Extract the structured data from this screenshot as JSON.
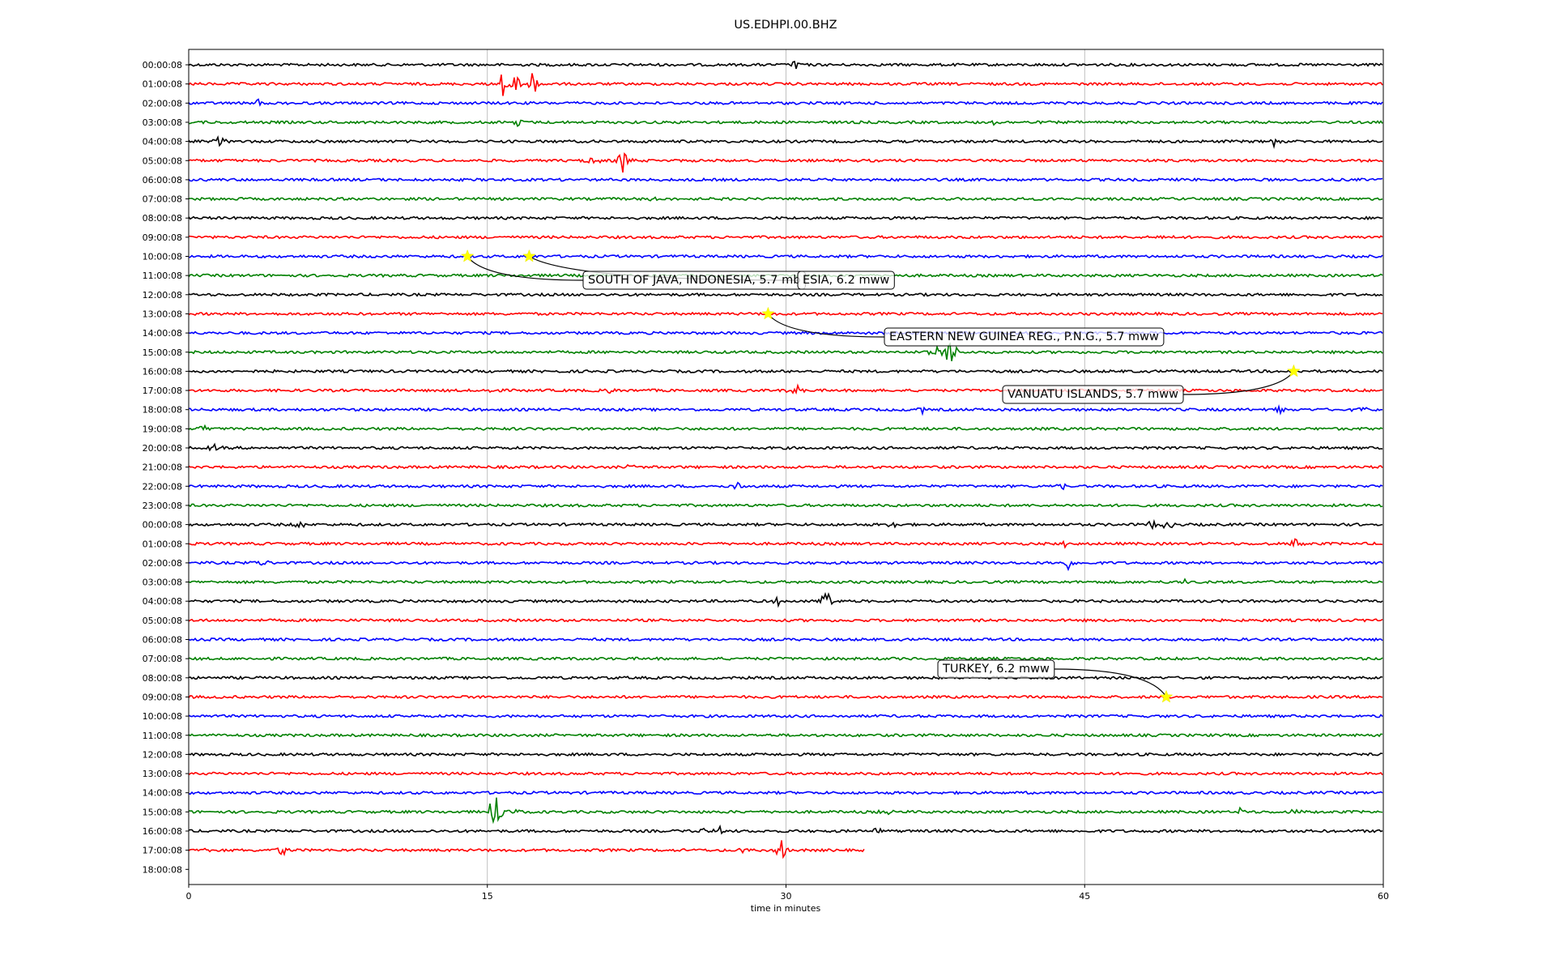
{
  "chart_data": {
    "type": "line",
    "title": "US.EDHPI.00.BHZ",
    "xlabel": "time in minutes",
    "xlim": [
      0,
      60
    ],
    "x_ticks": [
      0,
      15,
      30,
      45,
      60
    ],
    "grid": "vertical",
    "row_colors": [
      "#000000",
      "#ff0000",
      "#0000ff",
      "#008000"
    ],
    "rows": [
      "00:00:08",
      "01:00:08",
      "02:00:08",
      "03:00:08",
      "04:00:08",
      "05:00:08",
      "06:00:08",
      "07:00:08",
      "08:00:08",
      "09:00:08",
      "10:00:08",
      "11:00:08",
      "12:00:08",
      "13:00:08",
      "14:00:08",
      "15:00:08",
      "16:00:08",
      "17:00:08",
      "18:00:08",
      "19:00:08",
      "20:00:08",
      "21:00:08",
      "22:00:08",
      "23:00:08",
      "00:00:08",
      "01:00:08",
      "02:00:08",
      "03:00:08",
      "04:00:08",
      "05:00:08",
      "06:00:08",
      "07:00:08",
      "08:00:08",
      "09:00:08",
      "10:00:08",
      "11:00:08",
      "12:00:08",
      "13:00:08",
      "14:00:08",
      "15:00:08",
      "16:00:08",
      "17:00:08",
      "18:00:08"
    ],
    "last_trace_end_minute": 34,
    "events": [
      {
        "label": "SOUTH OF JAVA, INDONESIA, 5.7 mb",
        "row": 10,
        "minute": 14.0
      },
      {
        "label": "ESIA, 6.2 mww",
        "row": 10,
        "minute": 17.1
      },
      {
        "label": "EASTERN NEW GUINEA REG., P.N.G., 5.7 mww",
        "row": 13,
        "minute": 29.1
      },
      {
        "label": "VANUATU ISLANDS, 5.7 mww",
        "row": 16,
        "minute": 55.5
      },
      {
        "label": "TURKEY, 6.2 mww",
        "row": 33,
        "minute": 49.1
      }
    ],
    "event_marker_color": "#ffff00",
    "bursts": [
      {
        "row": 0,
        "minute": 30.5,
        "amp": 7
      },
      {
        "row": 1,
        "minute": 15.8,
        "amp": 18
      },
      {
        "row": 1,
        "minute": 16.4,
        "amp": 14
      },
      {
        "row": 1,
        "minute": 17.3,
        "amp": 20
      },
      {
        "row": 2,
        "minute": 3.5,
        "amp": 5
      },
      {
        "row": 3,
        "minute": 16.5,
        "amp": 7
      },
      {
        "row": 3,
        "minute": 40.5,
        "amp": 4
      },
      {
        "row": 4,
        "minute": 1.5,
        "amp": 10
      },
      {
        "row": 4,
        "minute": 54.5,
        "amp": 6
      },
      {
        "row": 5,
        "minute": 20.3,
        "amp": 8
      },
      {
        "row": 5,
        "minute": 21.8,
        "amp": 22
      },
      {
        "row": 7,
        "minute": 23.2,
        "amp": 3
      },
      {
        "row": 9,
        "minute": 49,
        "amp": 3
      },
      {
        "row": 15,
        "minute": 37.5,
        "amp": 8
      },
      {
        "row": 15,
        "minute": 38.2,
        "amp": 30
      },
      {
        "row": 17,
        "minute": 15,
        "amp": 7
      },
      {
        "row": 17,
        "minute": 21.2,
        "amp": 5
      },
      {
        "row": 17,
        "minute": 30.5,
        "amp": 9
      },
      {
        "row": 18,
        "minute": 36.8,
        "amp": 7
      },
      {
        "row": 18,
        "minute": 54.8,
        "amp": 5
      },
      {
        "row": 18,
        "minute": 58.9,
        "amp": 5
      },
      {
        "row": 19,
        "minute": 0.7,
        "amp": 5
      },
      {
        "row": 19,
        "minute": 60,
        "amp": 6
      },
      {
        "row": 20,
        "minute": 1.3,
        "amp": 6
      },
      {
        "row": 21,
        "minute": 22.3,
        "amp": 4
      },
      {
        "row": 22,
        "minute": 27.6,
        "amp": 8
      },
      {
        "row": 22,
        "minute": 43.9,
        "amp": 6
      },
      {
        "row": 23,
        "minute": 38.7,
        "amp": 4
      },
      {
        "row": 24,
        "minute": 5.6,
        "amp": 5
      },
      {
        "row": 24,
        "minute": 35.3,
        "amp": 5
      },
      {
        "row": 24,
        "minute": 48.3,
        "amp": 7
      },
      {
        "row": 24,
        "minute": 49.1,
        "amp": 9
      },
      {
        "row": 25,
        "minute": 44,
        "amp": 5
      },
      {
        "row": 25,
        "minute": 55.6,
        "amp": 9
      },
      {
        "row": 26,
        "minute": 3.7,
        "amp": 6
      },
      {
        "row": 26,
        "minute": 44.2,
        "amp": 12
      },
      {
        "row": 27,
        "minute": 50,
        "amp": 4
      },
      {
        "row": 28,
        "minute": 29.6,
        "amp": 5
      },
      {
        "row": 28,
        "minute": 32.1,
        "amp": 30
      },
      {
        "row": 39,
        "minute": 15.4,
        "amp": 36
      },
      {
        "row": 39,
        "minute": 16.3,
        "amp": 6
      },
      {
        "row": 39,
        "minute": 35.1,
        "amp": 6
      },
      {
        "row": 39,
        "minute": 52.8,
        "amp": 5
      },
      {
        "row": 39,
        "minute": 55.5,
        "amp": 6
      },
      {
        "row": 40,
        "minute": 34.5,
        "amp": 5
      },
      {
        "row": 40,
        "minute": 25.7,
        "amp": 5
      },
      {
        "row": 40,
        "minute": 26.7,
        "amp": 5
      },
      {
        "row": 41,
        "minute": 1,
        "amp": 6
      },
      {
        "row": 41,
        "minute": 4.7,
        "amp": 9
      },
      {
        "row": 41,
        "minute": 28,
        "amp": 9
      },
      {
        "row": 41,
        "minute": 29.8,
        "amp": 14
      }
    ]
  }
}
